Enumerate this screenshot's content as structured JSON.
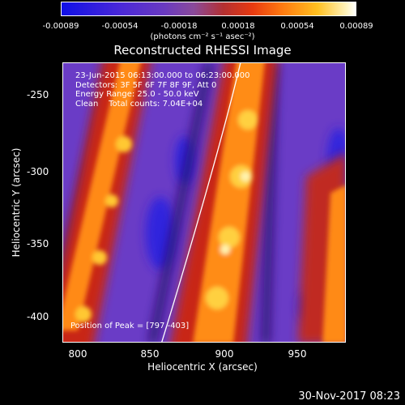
{
  "colorbar": {
    "tick_labels": [
      "-0.00089",
      "-0.00054",
      "-0.00018",
      "0.00018",
      "0.00054",
      "0.00089"
    ],
    "units_label": "(photons cm⁻² s⁻¹ asec⁻²)"
  },
  "image": {
    "title": "Reconstructed RHESSI Image",
    "info_lines": [
      "23-Jun-2015 06:13:00.000 to 06:23:00.000",
      "Detectors: 3F 5F 6F 7F 8F 9F, Att 0",
      "Energy Range: 25.0 - 50.0 keV",
      "Clean    Total counts: 7.04E+04"
    ],
    "peak_text": "Position of Peak = [797,-403]",
    "xlabel": "Heliocentric X (arcsec)",
    "ylabel": "Heliocentric Y (arcsec)",
    "x_ticks": [
      "800",
      "850",
      "900",
      "950"
    ],
    "y_ticks": [
      "-250",
      "-300",
      "-350",
      "-400"
    ]
  },
  "footer": {
    "date": "30-Nov-2017 08:23"
  }
}
